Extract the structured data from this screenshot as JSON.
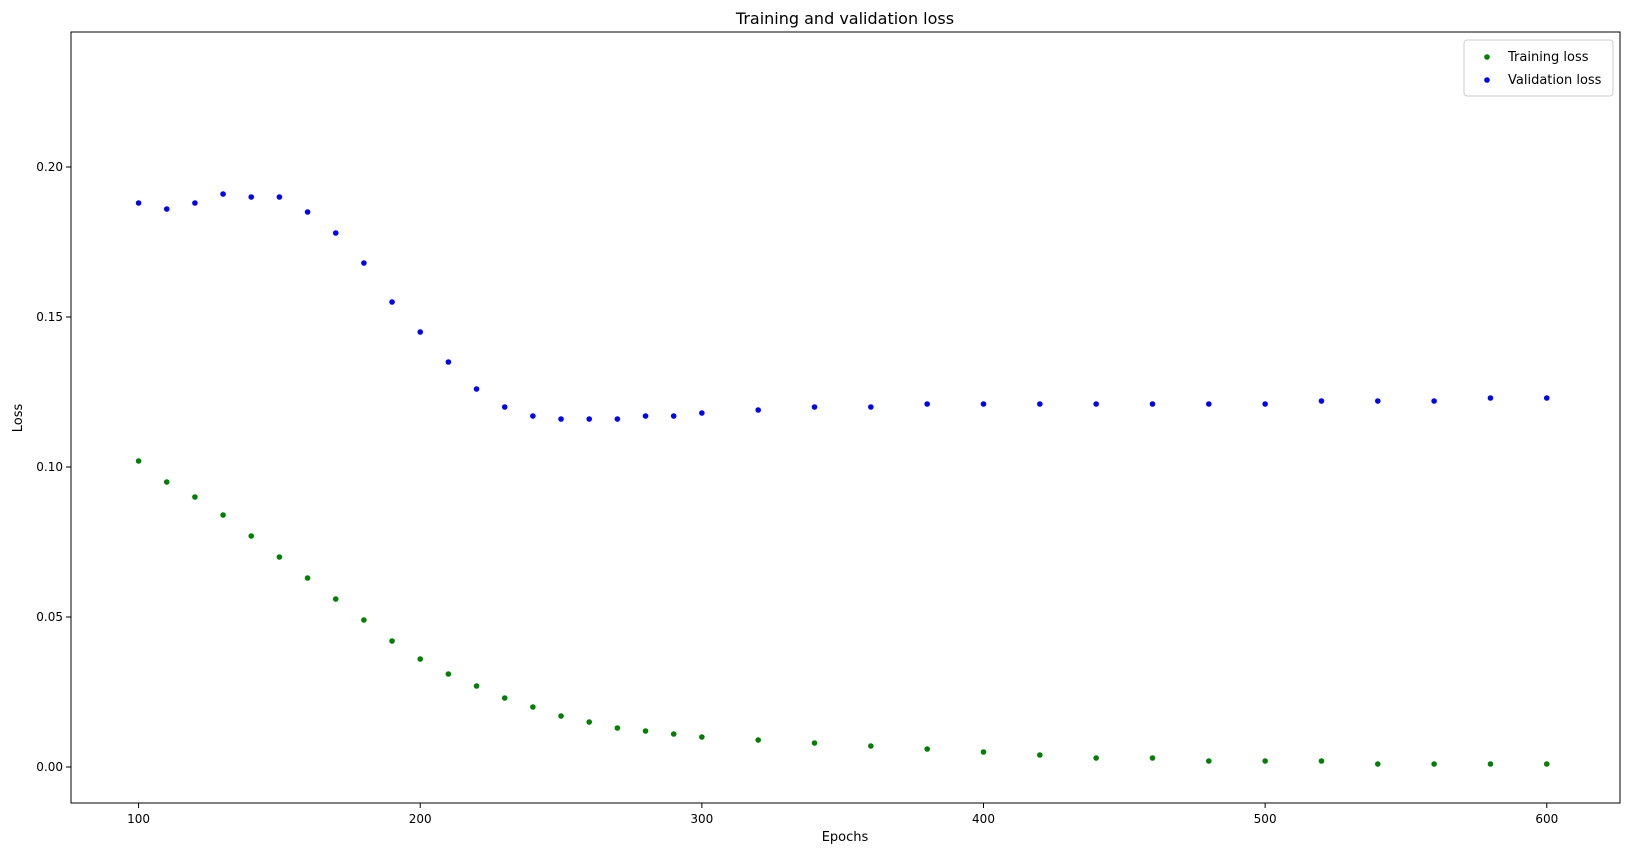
{
  "chart_data": {
    "type": "scatter",
    "title": "Training and validation loss",
    "xlabel": "Epochs",
    "ylabel": "Loss",
    "xlim": [
      76,
      626
    ],
    "ylim": [
      -0.012,
      0.245
    ],
    "x_ticks": [
      100,
      200,
      300,
      400,
      500,
      600
    ],
    "x_tick_labels": [
      "100",
      "200",
      "300",
      "400",
      "500",
      "600"
    ],
    "y_ticks": [
      0.0,
      0.05,
      0.1,
      0.15,
      0.2
    ],
    "y_tick_labels": [
      "0.00",
      "0.05",
      "0.10",
      "0.15",
      "0.20"
    ],
    "grid": false,
    "legend_position": "top-right",
    "series": [
      {
        "name": "Training loss",
        "color": "#008000",
        "x": [
          100,
          110,
          120,
          130,
          140,
          150,
          160,
          170,
          180,
          190,
          200,
          210,
          220,
          230,
          240,
          250,
          260,
          270,
          280,
          290,
          300,
          320,
          340,
          360,
          380,
          400,
          420,
          440,
          460,
          480,
          500,
          520,
          540,
          560,
          580,
          600
        ],
        "values": [
          0.102,
          0.095,
          0.09,
          0.084,
          0.077,
          0.07,
          0.063,
          0.056,
          0.049,
          0.042,
          0.036,
          0.031,
          0.027,
          0.023,
          0.02,
          0.017,
          0.015,
          0.013,
          0.012,
          0.011,
          0.01,
          0.009,
          0.008,
          0.007,
          0.006,
          0.005,
          0.004,
          0.003,
          0.003,
          0.002,
          0.002,
          0.002,
          0.001,
          0.001,
          0.001,
          0.001
        ]
      },
      {
        "name": "Validation loss",
        "color": "#0000ff",
        "x": [
          100,
          110,
          120,
          130,
          140,
          150,
          160,
          170,
          180,
          190,
          200,
          210,
          220,
          230,
          240,
          250,
          260,
          270,
          280,
          290,
          300,
          320,
          340,
          360,
          380,
          400,
          420,
          440,
          460,
          480,
          500,
          520,
          540,
          560,
          580,
          600
        ],
        "values": [
          0.188,
          0.186,
          0.188,
          0.191,
          0.19,
          0.19,
          0.185,
          0.178,
          0.168,
          0.155,
          0.145,
          0.135,
          0.126,
          0.12,
          0.117,
          0.116,
          0.116,
          0.116,
          0.117,
          0.117,
          0.118,
          0.119,
          0.12,
          0.12,
          0.121,
          0.121,
          0.121,
          0.121,
          0.121,
          0.121,
          0.121,
          0.122,
          0.122,
          0.122,
          0.123,
          0.123
        ]
      }
    ]
  }
}
